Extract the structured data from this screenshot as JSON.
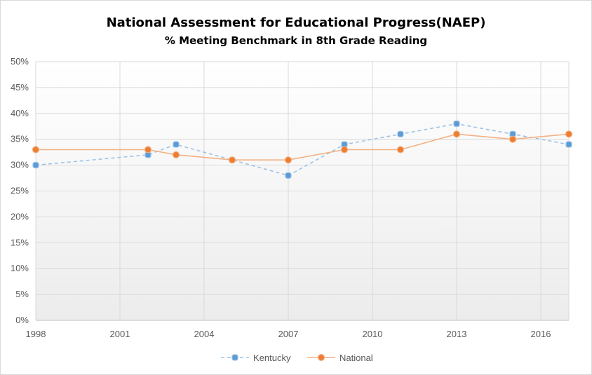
{
  "chart_data": {
    "type": "line",
    "title": "National Assessment for Educational Progress(NAEP)",
    "subtitle": "% Meeting Benchmark in 8th Grade Reading",
    "xlabel": "",
    "ylabel": "",
    "xlim": [
      1998,
      2017
    ],
    "ylim": [
      0,
      50
    ],
    "x_ticks": [
      1998,
      2001,
      2004,
      2007,
      2010,
      2013,
      2016
    ],
    "x_tick_labels": [
      "1998",
      "2001",
      "2004",
      "2007",
      "2010",
      "2013",
      "2016"
    ],
    "y_ticks": [
      0,
      5,
      10,
      15,
      20,
      25,
      30,
      35,
      40,
      45,
      50
    ],
    "y_tick_labels": [
      "0%",
      "5%",
      "10%",
      "15%",
      "20%",
      "25%",
      "30%",
      "35%",
      "40%",
      "45%",
      "50%"
    ],
    "grid": true,
    "legend_position": "bottom",
    "series": [
      {
        "name": "Kentucky",
        "x": [
          1998,
          2002,
          2003,
          2005,
          2007,
          2009,
          2011,
          2013,
          2015,
          2017
        ],
        "values": [
          30,
          32,
          34,
          31,
          28,
          34,
          36,
          38,
          36,
          34
        ],
        "line_color": "#9dc3e6",
        "marker_fill": "#5b9bd5",
        "marker_stroke": "#9dc3e6",
        "line_style": "dashed",
        "marker": "square-ish"
      },
      {
        "name": "National",
        "x": [
          1998,
          2002,
          2003,
          2005,
          2007,
          2009,
          2011,
          2013,
          2015,
          2017
        ],
        "values": [
          33,
          33,
          32,
          31,
          31,
          33,
          33,
          36,
          35,
          36
        ],
        "line_color": "#f4b183",
        "marker_fill": "#ed7d31",
        "marker_stroke": "#f4b183",
        "line_style": "solid",
        "marker": "circle"
      }
    ]
  }
}
